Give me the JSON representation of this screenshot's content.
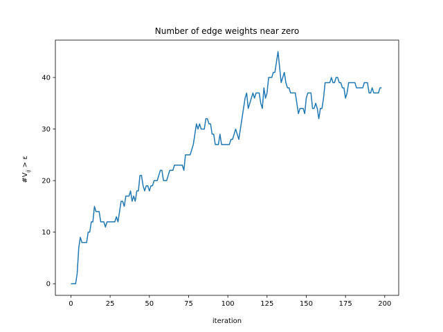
{
  "chart_data": {
    "type": "line",
    "title": "Number of edge weights near zero",
    "xlabel": "iteration",
    "ylabel": "#V_ij > ε",
    "xlim": [
      -9.9,
      208.9
    ],
    "ylim": [
      -2.25,
      47.25
    ],
    "xticks": [
      0,
      25,
      50,
      75,
      100,
      125,
      150,
      175,
      200
    ],
    "yticks": [
      0,
      10,
      20,
      30,
      40
    ],
    "grid": false,
    "series": [
      {
        "color": "#1f77b4",
        "x_start": 0,
        "x_step": 1,
        "values": [
          0,
          0,
          0,
          0,
          2,
          7,
          9,
          8,
          8,
          8,
          8,
          10,
          10,
          12,
          12,
          15,
          14,
          14,
          14,
          12,
          12,
          12,
          11,
          12,
          12,
          12,
          12,
          12,
          12,
          13,
          12,
          14,
          16,
          16,
          15,
          17,
          17,
          17,
          18,
          16,
          17,
          16,
          18,
          18,
          21,
          21,
          19,
          18,
          19,
          19,
          18,
          19,
          19,
          20,
          20,
          20,
          21,
          22,
          22,
          20,
          20,
          20,
          21,
          22,
          22,
          22,
          23,
          23,
          23,
          23,
          23,
          23,
          22,
          25,
          25,
          25,
          25,
          26,
          27,
          29,
          31,
          30,
          31,
          30,
          30,
          30,
          32,
          32,
          31,
          31,
          29,
          29,
          27,
          27,
          27,
          29,
          27,
          27,
          27,
          27,
          27,
          27,
          28,
          28,
          29,
          30,
          29,
          28,
          30,
          32,
          34,
          36,
          37,
          34,
          35,
          36,
          37,
          36,
          37,
          37,
          37,
          35,
          34,
          38,
          36,
          37,
          40,
          40,
          40,
          41,
          41,
          43,
          45,
          42,
          39,
          40,
          41,
          39,
          38,
          38,
          37,
          37,
          37,
          37,
          35,
          33,
          34,
          34,
          34,
          33,
          36,
          37,
          37,
          37,
          34,
          34,
          35,
          34,
          32,
          34,
          34,
          36,
          39,
          39,
          39,
          39,
          40,
          39,
          39,
          40,
          40,
          39,
          39,
          38,
          38,
          36,
          37,
          39,
          39,
          39,
          39,
          39,
          38,
          38,
          38,
          38,
          38,
          39,
          39,
          39,
          37,
          37,
          38,
          37,
          37,
          37,
          37,
          38,
          38
        ]
      }
    ]
  }
}
